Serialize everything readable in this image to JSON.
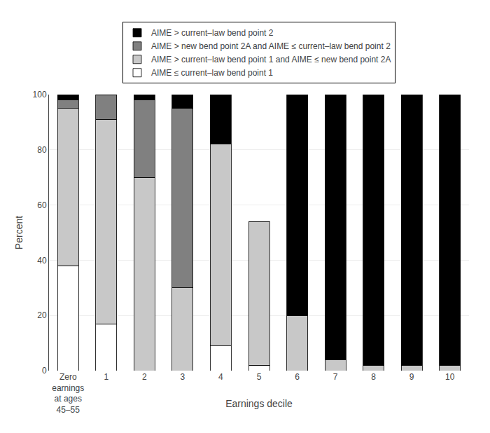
{
  "chart_data": {
    "type": "bar",
    "stacked": true,
    "xlabel": "Earnings decile",
    "ylabel": "Percent",
    "categories": [
      "Zero\nearnings\nat ages\n45–55",
      "1",
      "2",
      "3",
      "4",
      "5",
      "6",
      "7",
      "8",
      "9",
      "10"
    ],
    "series": [
      {
        "name": "AIME ≤ current–law bend point 1",
        "color": "#ffffff",
        "values": [
          38,
          17,
          0,
          0,
          9,
          2,
          0,
          0,
          0,
          0,
          0
        ]
      },
      {
        "name": "AIME > current–law bend point 1 and AIME ≤ new bend point 2A",
        "color": "#c8c8c8",
        "values": [
          57,
          74,
          70,
          30,
          73,
          52,
          20,
          4,
          2,
          2,
          2
        ]
      },
      {
        "name": "AIME > new bend point 2A and AIME ≤ current–law bend point 2",
        "color": "#808080",
        "values": [
          3,
          9,
          28,
          65,
          0,
          0,
          0,
          0,
          0,
          0,
          0
        ]
      },
      {
        "name": "AIME > current–law bend point 2",
        "color": "#000000",
        "values": [
          2,
          0,
          2,
          5,
          18,
          0,
          80,
          96,
          98,
          98,
          98
        ]
      }
    ],
    "ylim": [
      0,
      100
    ],
    "yticks": [
      0,
      20,
      40,
      60,
      80,
      100
    ],
    "grid": true,
    "legend": "top"
  }
}
